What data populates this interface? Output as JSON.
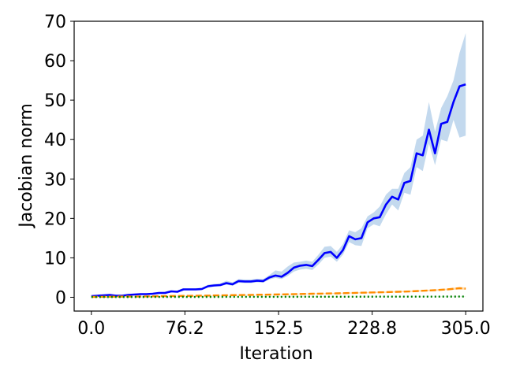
{
  "chart_data": {
    "type": "line",
    "title": "",
    "xlabel": "Iteration",
    "ylabel": "Jacobian norm",
    "xlim": [
      -14,
      319
    ],
    "ylim": [
      -3.5,
      70
    ],
    "xticks": [
      0.0,
      76.2,
      152.5,
      228.8,
      305.0
    ],
    "xtick_labels": [
      "0.0",
      "76.2",
      "152.5",
      "228.8",
      "305.0"
    ],
    "yticks": [
      0,
      10,
      20,
      30,
      40,
      50,
      60,
      70
    ],
    "ytick_labels": [
      "0",
      "10",
      "20",
      "30",
      "40",
      "50",
      "60",
      "70"
    ],
    "grid": false,
    "legend": "none",
    "series": [
      {
        "color": "#0000ff",
        "band_color": "#bcd5ec",
        "style": "solid",
        "x": [
          0,
          5,
          10,
          15,
          20,
          25,
          30,
          35,
          40,
          45,
          50,
          55,
          60,
          65,
          70,
          75,
          80,
          85,
          90,
          95,
          100,
          105,
          110,
          115,
          120,
          125,
          130,
          135,
          140,
          145,
          150,
          155,
          160,
          165,
          170,
          175,
          180,
          185,
          190,
          195,
          200,
          205,
          210,
          215,
          220,
          225,
          230,
          235,
          240,
          245,
          250,
          255,
          260,
          265,
          270,
          275,
          280,
          285,
          290,
          295,
          300,
          305
        ],
        "y": [
          0.3,
          0.4,
          0.5,
          0.6,
          0.4,
          0.4,
          0.6,
          0.7,
          0.8,
          0.8,
          0.9,
          1.1,
          1.1,
          1.5,
          1.4,
          2.0,
          2.0,
          2.0,
          2.1,
          2.8,
          3.0,
          3.1,
          3.6,
          3.3,
          4.1,
          4.0,
          4.0,
          4.2,
          4.1,
          5.0,
          5.5,
          5.2,
          6.2,
          7.5,
          8.0,
          8.2,
          7.9,
          9.5,
          11.2,
          11.5,
          10.0,
          12.0,
          15.5,
          14.7,
          15.0,
          19.0,
          20.0,
          20.3,
          23.5,
          25.5,
          24.8,
          29.0,
          29.5,
          36.5,
          36.0,
          42.5,
          36.5,
          44.0,
          44.5,
          49.5,
          53.5,
          54.0
        ],
        "lower": [
          0.2,
          0.3,
          0.4,
          0.5,
          0.3,
          0.3,
          0.5,
          0.6,
          0.7,
          0.7,
          0.8,
          1.0,
          1.0,
          1.3,
          1.2,
          1.8,
          1.8,
          1.8,
          1.9,
          2.5,
          2.7,
          2.8,
          3.2,
          2.9,
          3.7,
          3.6,
          3.6,
          3.8,
          3.7,
          4.5,
          4.9,
          4.6,
          5.4,
          6.5,
          7.0,
          7.2,
          6.9,
          8.3,
          10.0,
          10.3,
          9.0,
          10.8,
          14.0,
          13.2,
          13.0,
          17.5,
          18.5,
          18.0,
          21.0,
          23.5,
          22.0,
          26.5,
          26.0,
          33.0,
          32.0,
          39.0,
          33.5,
          40.0,
          39.5,
          45.0,
          40.5,
          41.0
        ],
        "upper": [
          0.4,
          0.5,
          0.6,
          0.8,
          0.5,
          0.5,
          0.8,
          0.9,
          1.0,
          1.0,
          1.1,
          1.3,
          1.4,
          1.8,
          1.7,
          2.3,
          2.3,
          2.3,
          2.4,
          3.2,
          3.4,
          3.5,
          4.2,
          3.8,
          4.6,
          4.5,
          4.5,
          4.7,
          4.6,
          5.6,
          6.8,
          6.5,
          7.8,
          8.8,
          9.0,
          9.3,
          9.0,
          10.8,
          12.8,
          13.0,
          11.5,
          13.5,
          17.0,
          16.5,
          17.5,
          20.5,
          21.5,
          23.0,
          26.0,
          27.5,
          27.5,
          31.5,
          33.0,
          40.0,
          41.0,
          49.5,
          42.0,
          48.0,
          51.0,
          55.0,
          62.0,
          67.0
        ]
      },
      {
        "color": "#ff8c00",
        "band_color": "#ffd9a8",
        "style": "dashed",
        "x": [
          0,
          20,
          40,
          60,
          80,
          100,
          120,
          140,
          160,
          180,
          200,
          220,
          240,
          260,
          280,
          290,
          300,
          305
        ],
        "y": [
          0.1,
          0.15,
          0.2,
          0.3,
          0.35,
          0.45,
          0.55,
          0.65,
          0.75,
          0.9,
          1.0,
          1.15,
          1.3,
          1.5,
          1.8,
          2.0,
          2.3,
          2.2
        ],
        "lower": [
          0.05,
          0.1,
          0.15,
          0.25,
          0.3,
          0.4,
          0.5,
          0.6,
          0.7,
          0.8,
          0.9,
          1.0,
          1.15,
          1.35,
          1.6,
          1.8,
          2.0,
          1.9
        ],
        "upper": [
          0.15,
          0.2,
          0.25,
          0.35,
          0.4,
          0.5,
          0.6,
          0.7,
          0.85,
          1.0,
          1.1,
          1.3,
          1.45,
          1.7,
          2.0,
          2.2,
          2.6,
          2.5
        ]
      },
      {
        "color": "#008000",
        "band_color": "#b3d9b3",
        "style": "dotted",
        "x": [
          0,
          50,
          100,
          150,
          200,
          250,
          305
        ],
        "y": [
          0.05,
          0.08,
          0.1,
          0.12,
          0.14,
          0.15,
          0.17
        ],
        "lower": [
          0.03,
          0.06,
          0.08,
          0.1,
          0.12,
          0.13,
          0.15
        ],
        "upper": [
          0.07,
          0.1,
          0.12,
          0.14,
          0.16,
          0.17,
          0.19
        ]
      }
    ]
  }
}
